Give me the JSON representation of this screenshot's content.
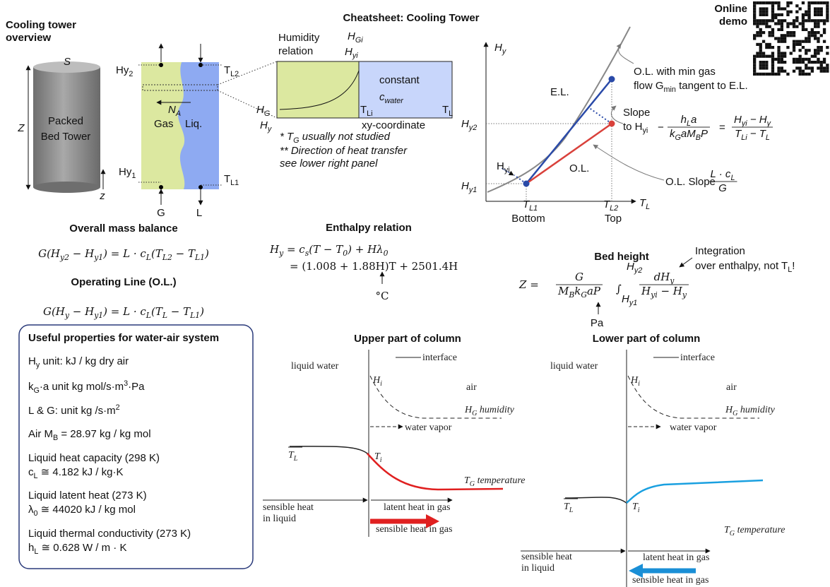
{
  "title": "Cheatsheet: Cooling Tower",
  "demo": [
    "Online",
    "demo"
  ],
  "overview": {
    "heading": [
      "Cooling tower",
      "overview"
    ],
    "S": "S",
    "Z": "Z",
    "z": "z",
    "tower": [
      "Packed",
      "Bed Tower"
    ],
    "Hy2": [
      "Hy",
      {
        "s": "2"
      }
    ],
    "Hy1": [
      "Hy",
      {
        "s": "1"
      }
    ],
    "TL2": [
      "T",
      {
        "s": "L2"
      }
    ],
    "TL1": [
      "T",
      {
        "s": "L1"
      }
    ],
    "NA": [
      "N",
      {
        "s": "A"
      }
    ],
    "gas": "Gas",
    "liq": "Liq.",
    "G": "G",
    "L": "L"
  },
  "xy": {
    "humidity": [
      "Humidity",
      "relation"
    ],
    "HGi": [
      "H",
      {
        "s": "Gi"
      }
    ],
    "Hyi": [
      "H",
      {
        "s": "yi"
      }
    ],
    "HG": [
      "H",
      {
        "s": "G"
      }
    ],
    "Hy": [
      "H",
      {
        "s": "y"
      }
    ],
    "constant": "constant",
    "cwater": [
      "c",
      {
        "s": "water"
      }
    ],
    "TLi": [
      "T",
      {
        "s": "Li"
      }
    ],
    "TL": [
      "T",
      {
        "s": "L"
      }
    ],
    "axis": "xy-coordinate",
    "note1": [
      "* T",
      {
        "s": "G"
      },
      " usually not studied"
    ],
    "note2": [
      "** Direction of heat transfer",
      "see lower right panel"
    ]
  },
  "ol_chart": {
    "y_axis": [
      "H",
      {
        "s": "y"
      }
    ],
    "x_axis": [
      "T",
      {
        "s": "L"
      }
    ],
    "Hy2": [
      "H",
      {
        "s": "y2"
      }
    ],
    "Hy1": [
      "H",
      {
        "s": "y1"
      }
    ],
    "TL1": [
      "T",
      {
        "s": "L1"
      }
    ],
    "bottom": "Bottom",
    "TL2": [
      "T",
      {
        "s": "L2"
      }
    ],
    "top": "Top",
    "el": "E.L.",
    "ol": "O.L.",
    "min_gas": [
      "O.L. with min gas",
      [
        "flow G",
        {
          "s": "min"
        },
        " tangent to E.L."
      ]
    ],
    "slope": [
      "Slope",
      [
        "to H",
        {
          "s": "yi"
        }
      ]
    ],
    "slope_eq": {
      "sign": "−",
      "num1": [
        "h",
        {
          "s": "L"
        },
        "a"
      ],
      "den1": [
        "k",
        {
          "s": "G"
        },
        "aM",
        {
          "s": "B"
        },
        "P"
      ],
      "eq": "=",
      "num2": [
        "H",
        {
          "s": "yi"
        },
        " − H",
        {
          "s": "y"
        }
      ],
      "den2": [
        "T",
        {
          "s": "Li"
        },
        " − T",
        {
          "s": "L"
        }
      ]
    },
    "Hyi": [
      "H",
      {
        "s": "yi"
      }
    ],
    "ol_slope": "O.L. Slope",
    "ol_num": [
      "L · c",
      {
        "s": "L"
      }
    ],
    "ol_den": "G"
  },
  "mass_balance": {
    "heading": "Overall mass balance",
    "eq": [
      "G(H",
      {
        "s": "y2"
      },
      " − H",
      {
        "s": "y1"
      },
      ") = L · c",
      {
        "s": "L"
      },
      "(T",
      {
        "s": "L2"
      },
      " − T",
      {
        "s": "L1"
      },
      ")"
    ]
  },
  "operating_line": {
    "heading": "Operating Line (O.L.)",
    "eq": [
      "G(H",
      {
        "s": "y"
      },
      " − H",
      {
        "s": "y1"
      },
      ") = L · c",
      {
        "s": "L"
      },
      "(T",
      {
        "s": "L"
      },
      " − T",
      {
        "s": "L1"
      },
      ")"
    ]
  },
  "enthalpy": {
    "heading": "Enthalpy relation",
    "eq1": [
      "H",
      {
        "s": "y"
      },
      " = c",
      {
        "s": "s"
      },
      "(T − T",
      {
        "s": "0"
      },
      ") + Hλ",
      {
        "s": "0"
      }
    ],
    "eq2": "= (1.008 + 1.88H)T + 2501.4H",
    "unit": "°C"
  },
  "bed_height": {
    "heading": "Bed height",
    "lhs": "Z =",
    "num": "G",
    "den": [
      "M",
      {
        "s": "B"
      },
      "k",
      {
        "s": "G"
      },
      "aP"
    ],
    "int": "∫",
    "hi": [
      "H",
      {
        "s": "y2"
      }
    ],
    "lo": [
      "H",
      {
        "s": "y1"
      }
    ],
    "num2": [
      "dH",
      {
        "s": "y"
      }
    ],
    "den2": [
      "H",
      {
        "s": "yi"
      },
      " − H",
      {
        "s": "y"
      }
    ],
    "pa": "Pa",
    "note": [
      "Integration",
      [
        "over enthalpy, not T",
        {
          "s": "L"
        },
        "!"
      ]
    ]
  },
  "properties": {
    "heading": "Useful properties for water-air system",
    "items": [
      [
        "H",
        {
          "s": "y"
        },
        " unit: kJ / kg dry air"
      ],
      [
        "k",
        {
          "s": "G"
        },
        "·a unit kg mol/s·m",
        {
          "sup": "3"
        },
        "·Pa"
      ],
      [
        "L & G: unit kg /s·m",
        {
          "sup": "2"
        }
      ],
      [
        "Air M",
        {
          "s": "B"
        },
        " = 28.97 kg / kg mol"
      ],
      "Liquid heat capacity (298 K)",
      [
        "c",
        {
          "s": "L"
        },
        " ≅ 4.182 kJ / kg·K"
      ],
      "Liquid latent heat (273 K)",
      [
        "λ",
        {
          "s": "0"
        },
        " ≅ 44020 kJ / kg mol"
      ],
      "Liquid thermal conductivity (273 K)",
      [
        "h",
        {
          "s": "L"
        },
        " ≅ 0.628 W / m · K"
      ]
    ]
  },
  "upper": {
    "heading": "Upper part of column",
    "liquid_water": "liquid water",
    "interface": "interface",
    "Hi": [
      "H",
      {
        "s": "i"
      }
    ],
    "air": "air",
    "humidity": [
      "H",
      {
        "s": "G"
      },
      " humidity"
    ],
    "vapor": "water vapor",
    "TL": [
      "T",
      {
        "s": "L"
      }
    ],
    "Ti": [
      "T",
      {
        "s": "i"
      }
    ],
    "TG": [
      "T",
      {
        "s": "G"
      },
      " temperature"
    ],
    "latent": "latent heat in gas",
    "sensible_liq": [
      "sensible heat",
      "in liquid"
    ],
    "sensible_gas": "sensible heat in gas"
  },
  "lower": {
    "heading": "Lower part of column",
    "liquid_water": "liquid water",
    "interface": "interface",
    "Hi": [
      "H",
      {
        "s": "i"
      }
    ],
    "air": "air",
    "humidity": [
      "H",
      {
        "s": "G"
      },
      " humidity"
    ],
    "vapor": "water vapor",
    "TL": [
      "T",
      {
        "s": "L"
      }
    ],
    "Ti": [
      "T",
      {
        "s": "i"
      }
    ],
    "TG": [
      "T",
      {
        "s": "G"
      },
      " temperature"
    ],
    "latent": "latent heat in gas",
    "sensible_liq": [
      "sensible heat",
      "in liquid"
    ],
    "sensible_gas": "sensible heat in gas"
  }
}
